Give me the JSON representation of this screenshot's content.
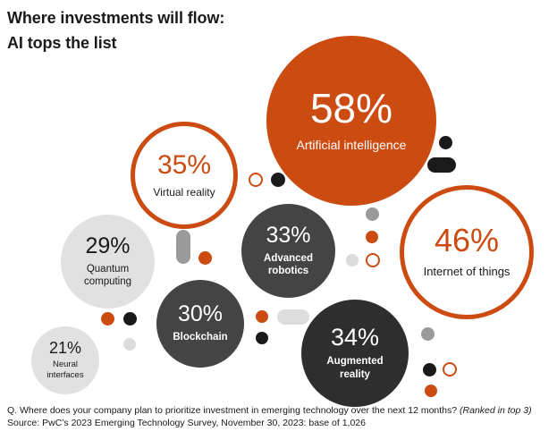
{
  "title": {
    "line1": "Where investments will flow:",
    "line2": "AI tops the list"
  },
  "chart_data": {
    "type": "bubble",
    "title": "Where investments will flow: AI tops the list",
    "unit": "%",
    "items": [
      {
        "label": "Artificial intelligence",
        "value": 58,
        "display": "58%"
      },
      {
        "label": "Internet of things",
        "value": 46,
        "display": "46%"
      },
      {
        "label": "Virtual reality",
        "value": 35,
        "display": "35%"
      },
      {
        "label": "Augmented reality",
        "value": 34,
        "display": "34%"
      },
      {
        "label": "Advanced robotics",
        "value": 33,
        "display": "33%"
      },
      {
        "label": "Blockchain",
        "value": 30,
        "display": "30%"
      },
      {
        "label": "Quantum computing",
        "value": 29,
        "display": "29%"
      },
      {
        "label": "Neural interfaces",
        "value": 21,
        "display": "21%"
      }
    ]
  },
  "bubbles": {
    "ai": {
      "pct": "58%",
      "label": "Artificial intelligence"
    },
    "iot": {
      "pct": "46%",
      "label": "Internet of things"
    },
    "vr": {
      "pct": "35%",
      "label": "Virtual reality"
    },
    "ar": {
      "pct": "34%",
      "label_l1": "Augmented",
      "label_l2": "reality"
    },
    "robotics": {
      "pct": "33%",
      "label_l1": "Advanced",
      "label_l2": "robotics"
    },
    "blockchain": {
      "pct": "30%",
      "label": "Blockchain"
    },
    "quantum": {
      "pct": "29%",
      "label_l1": "Quantum",
      "label_l2": "computing"
    },
    "neural": {
      "pct": "21%",
      "label_l1": "Neural",
      "label_l2": "interfaces"
    }
  },
  "colors": {
    "accent": "#cc4b11",
    "dark": "#444444",
    "darker": "#2e2e2e",
    "light": "#e1e1e1"
  },
  "footer": {
    "question": "Q. Where does your company plan to prioritize investment in emerging technology over the next 12 months?",
    "question_note": "(Ranked in top 3)",
    "source": "Source: PwC’s 2023 Emerging Technology Survey, November 30, 2023: base of 1,026"
  }
}
